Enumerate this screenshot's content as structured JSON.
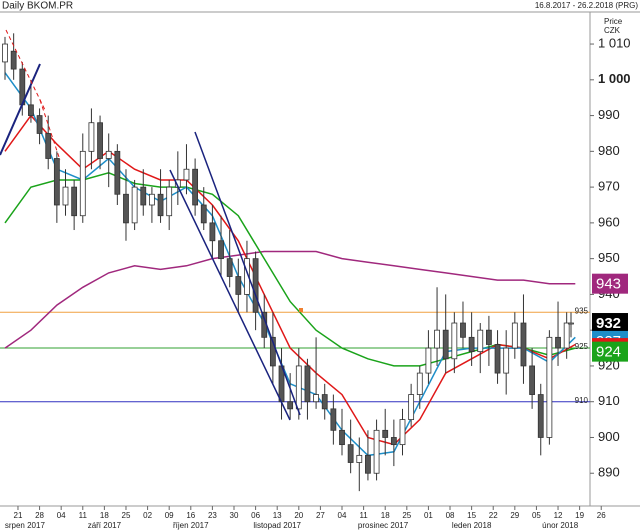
{
  "chart_data": {
    "type": "candlestick",
    "title": "Daily BKOM.PR",
    "subtitle": "16.8.2017 - 26.2.2018 (PRG)",
    "y_label": "Price",
    "unit": "CZK",
    "xlim": [
      -1.16,
      135.4
    ],
    "ylim": [
      881.4,
      1018.4
    ],
    "yticks": [
      {
        "value": 1010,
        "label": "1 010"
      },
      {
        "value": 1000,
        "label": "1 000"
      },
      990,
      980,
      970,
      960,
      950,
      940,
      930,
      920,
      910,
      900,
      890
    ],
    "xticks": [
      {
        "value": 3,
        "label": "21"
      },
      {
        "value": 8,
        "label": "28"
      },
      {
        "value": 13,
        "label": "04"
      },
      {
        "value": 18,
        "label": "11"
      },
      {
        "value": 23,
        "label": "18"
      },
      {
        "value": 28,
        "label": "25"
      },
      {
        "value": 33,
        "label": "02"
      },
      {
        "value": 38,
        "label": "09"
      },
      {
        "value": 43,
        "label": "16"
      },
      {
        "value": 48,
        "label": "23"
      },
      {
        "value": 53,
        "label": "30"
      },
      {
        "value": 58,
        "label": "06"
      },
      {
        "value": 63,
        "label": "13"
      },
      {
        "value": 68,
        "label": "20"
      },
      {
        "value": 73,
        "label": "27"
      },
      {
        "value": 78,
        "label": "04"
      },
      {
        "value": 83,
        "label": "11"
      },
      {
        "value": 88,
        "label": "18"
      },
      {
        "value": 93,
        "label": "25"
      },
      {
        "value": 98,
        "label": "01"
      },
      {
        "value": 103,
        "label": "08"
      },
      {
        "value": 108,
        "label": "15"
      },
      {
        "value": 113,
        "label": "22"
      },
      {
        "value": 118,
        "label": "29"
      },
      {
        "value": 123,
        "label": "05"
      },
      {
        "value": 128,
        "label": "12"
      },
      {
        "value": 133,
        "label": "19"
      },
      {
        "value": 138,
        "label": "26"
      }
    ],
    "month_ticks": [
      {
        "value": 4.6,
        "label": "srpen 2017"
      },
      {
        "value": 23,
        "label": "září 2017"
      },
      {
        "value": 43,
        "label": "říjen 2017"
      },
      {
        "value": 63,
        "label": "listopad 2017"
      },
      {
        "value": 87.5,
        "label": "prosinec 2017"
      },
      {
        "value": 108,
        "label": "leden 2018"
      },
      {
        "value": 128.5,
        "label": "únor 2018"
      }
    ],
    "candles": {
      "x": [
        0,
        2,
        4,
        6,
        8,
        10,
        12,
        14,
        16,
        18,
        20,
        22,
        24,
        26,
        28,
        30,
        32,
        34,
        36,
        38,
        40,
        42,
        44,
        46,
        48,
        50,
        52,
        54,
        56,
        58,
        60,
        62,
        64,
        66,
        68,
        70,
        72,
        74,
        76,
        78,
        80,
        82,
        84,
        86,
        88,
        90,
        92,
        94,
        96,
        98,
        100,
        102,
        104,
        106,
        108,
        110,
        112,
        114,
        116,
        118,
        120,
        122,
        124,
        126,
        128,
        130,
        131
      ],
      "ohlc": [
        [
          1005,
          1012,
          1000,
          1010
        ],
        [
          1008,
          1013,
          1000,
          1003
        ],
        [
          1003,
          1005,
          990,
          993
        ],
        [
          993,
          1000,
          988,
          990
        ],
        [
          990,
          992,
          982,
          985
        ],
        [
          985,
          990,
          975,
          978
        ],
        [
          978,
          980,
          960,
          965
        ],
        [
          965,
          975,
          962,
          970
        ],
        [
          970,
          972,
          958,
          962
        ],
        [
          962,
          985,
          960,
          980
        ],
        [
          980,
          992,
          975,
          988
        ],
        [
          988,
          990,
          975,
          978
        ],
        [
          978,
          985,
          970,
          980
        ],
        [
          980,
          982,
          965,
          968
        ],
        [
          968,
          975,
          955,
          960
        ],
        [
          960,
          972,
          958,
          970
        ],
        [
          970,
          975,
          962,
          965
        ],
        [
          965,
          970,
          960,
          968
        ],
        [
          968,
          975,
          960,
          962
        ],
        [
          962,
          972,
          958,
          970
        ],
        [
          970,
          980,
          965,
          972
        ],
        [
          972,
          982,
          968,
          975
        ],
        [
          975,
          978,
          962,
          965
        ],
        [
          965,
          970,
          958,
          960
        ],
        [
          960,
          965,
          950,
          955
        ],
        [
          955,
          962,
          945,
          950
        ],
        [
          950,
          958,
          942,
          945
        ],
        [
          945,
          950,
          935,
          940
        ],
        [
          940,
          955,
          935,
          950
        ],
        [
          950,
          952,
          930,
          935
        ],
        [
          935,
          940,
          925,
          928
        ],
        [
          928,
          935,
          915,
          920
        ],
        [
          920,
          925,
          905,
          910
        ],
        [
          910,
          918,
          905,
          908
        ],
        [
          908,
          925,
          905,
          920
        ],
        [
          920,
          922,
          905,
          910
        ],
        [
          910,
          928,
          908,
          912
        ],
        [
          912,
          915,
          905,
          908
        ],
        [
          908,
          912,
          898,
          902
        ],
        [
          902,
          908,
          895,
          898
        ],
        [
          898,
          905,
          890,
          893
        ],
        [
          893,
          900,
          885,
          895
        ],
        [
          895,
          902,
          888,
          890
        ],
        [
          890,
          905,
          888,
          902
        ],
        [
          902,
          908,
          895,
          900
        ],
        [
          900,
          905,
          892,
          898
        ],
        [
          898,
          908,
          895,
          905
        ],
        [
          905,
          915,
          903,
          912
        ],
        [
          912,
          920,
          908,
          918
        ],
        [
          918,
          930,
          915,
          925
        ],
        [
          925,
          942,
          920,
          930
        ],
        [
          930,
          940,
          918,
          922
        ],
        [
          922,
          935,
          918,
          932
        ],
        [
          932,
          938,
          925,
          928
        ],
        [
          928,
          935,
          920,
          924
        ],
        [
          924,
          932,
          918,
          930
        ],
        [
          930,
          934,
          920,
          926
        ],
        [
          926,
          930,
          915,
          918
        ],
        [
          918,
          930,
          912,
          925
        ],
        [
          925,
          935,
          922,
          932
        ],
        [
          932,
          940,
          915,
          920
        ],
        [
          920,
          925,
          908,
          912
        ],
        [
          912,
          915,
          895,
          900
        ],
        [
          900,
          930,
          898,
          928
        ],
        [
          928,
          938,
          920,
          925
        ],
        [
          925,
          935,
          922,
          932
        ],
        [
          932,
          935,
          928,
          932
        ]
      ]
    },
    "lines": {
      "x": [
        0,
        6,
        12,
        18,
        24,
        30,
        36,
        42,
        48,
        54,
        60,
        66,
        72,
        78,
        84,
        90,
        96,
        102,
        108,
        114,
        120,
        126,
        132
      ],
      "series": [
        {
          "color": "#a0287d",
          "values": [
            925,
            930,
            937,
            942,
            946,
            948,
            947,
            948,
            950,
            951,
            952,
            952,
            952,
            950,
            949,
            948,
            947,
            946,
            945,
            944,
            944,
            943,
            943
          ]
        },
        {
          "color": "#1aa31a",
          "values": [
            960,
            970,
            972,
            972,
            974,
            971,
            970,
            970,
            968,
            962,
            950,
            938,
            930,
            925,
            922,
            920,
            920,
            922,
            924,
            926,
            925,
            923,
            925
          ]
        },
        {
          "color": "#e01818",
          "values": [
            980,
            990,
            982,
            975,
            980,
            975,
            972,
            972,
            965,
            955,
            940,
            925,
            918,
            912,
            900,
            898,
            905,
            918,
            922,
            926,
            925,
            922,
            926
          ]
        },
        {
          "color": "#1e8ec8",
          "values": [
            1002,
            992,
            975,
            972,
            978,
            970,
            966,
            970,
            962,
            945,
            932,
            915,
            912,
            902,
            895,
            896,
            910,
            924,
            925,
            925,
            925,
            921,
            928
          ]
        }
      ]
    },
    "levels": [
      {
        "value": 935,
        "color": "#f0a040"
      },
      {
        "value": 925,
        "color": "#30a030"
      },
      {
        "value": 910,
        "color": "#3030c0"
      }
    ],
    "last_values": [
      {
        "value": 943,
        "color": "#a0287d"
      },
      {
        "value": 932,
        "color": "#000000"
      },
      {
        "value": 927,
        "color": "#1e8ec8"
      },
      {
        "value": 925,
        "color": "#e01818"
      },
      {
        "value": 924,
        "color": "#1aa31a"
      }
    ]
  }
}
